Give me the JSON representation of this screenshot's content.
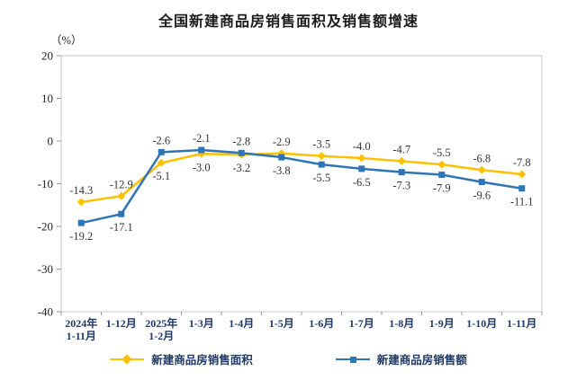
{
  "chart": {
    "title": "全国新建商品房销售面积及销售额增速",
    "unit_label": "（%）"
  },
  "chart_data": {
    "type": "line",
    "title": "全国新建商品房销售面积及销售额增速",
    "ylabel": "（%）",
    "xlabel": "",
    "ylim": [
      -40,
      20
    ],
    "yticks": [
      20,
      10,
      0,
      -10,
      -20,
      -30,
      -40
    ],
    "grid": false,
    "legend_position": "bottom",
    "categories": [
      [
        "2024年",
        "1-11月"
      ],
      [
        "1-12月"
      ],
      [
        "2025年",
        "1-2月"
      ],
      [
        "1-3月"
      ],
      [
        "1-4月"
      ],
      [
        "1-5月"
      ],
      [
        "1-6月"
      ],
      [
        "1-7月"
      ],
      [
        "1-8月"
      ],
      [
        "1-9月"
      ],
      [
        "1-10月"
      ],
      [
        "1-11月"
      ]
    ],
    "series": [
      {
        "name": "新建商品房销售面积",
        "color": "#FFC000",
        "marker": "diamond",
        "values": [
          -14.3,
          -12.9,
          -5.1,
          -3.0,
          -3.2,
          -2.9,
          -3.5,
          -4.0,
          -4.7,
          -5.5,
          -6.8,
          -7.8
        ],
        "label_side": [
          "above",
          "above",
          "below",
          "below",
          "below",
          "above",
          "above",
          "above",
          "above",
          "above",
          "above",
          "above"
        ]
      },
      {
        "name": "新建商品房销售额",
        "color": "#2E75B6",
        "marker": "square",
        "values": [
          -19.2,
          -17.1,
          -2.6,
          -2.1,
          -2.8,
          -3.8,
          -5.5,
          -6.5,
          -7.3,
          -7.9,
          -9.6,
          -11.1
        ],
        "label_side": [
          "below",
          "below",
          "above",
          "above",
          "above",
          "below",
          "below",
          "below",
          "below",
          "below",
          "below",
          "below"
        ]
      }
    ],
    "colors": {
      "axis_label": "#1F3864",
      "tick_label": "#222222",
      "data_label": "#333333",
      "plot_border": "#C9C9C9",
      "tick_mark": "#999999"
    }
  }
}
